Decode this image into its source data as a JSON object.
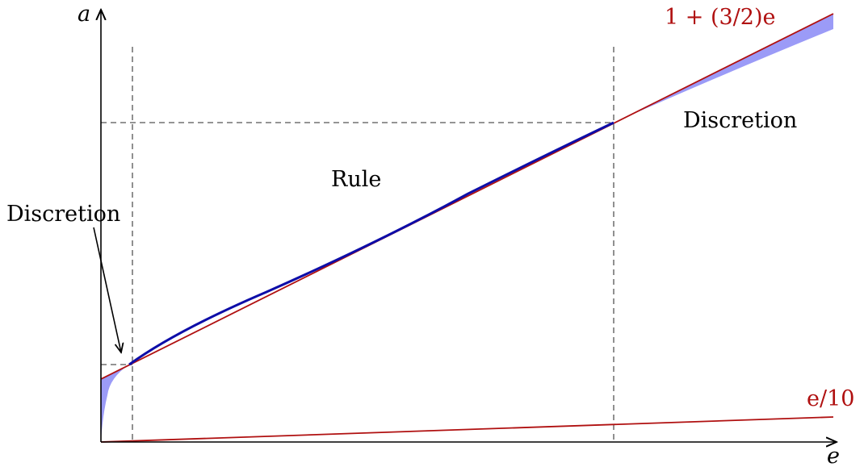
{
  "colors": {
    "line": "#b01010",
    "curve": "#0d0da8",
    "band": "#9b9bf7",
    "axis": "#000000",
    "guide": "#555555"
  },
  "axes": {
    "x_label": "e",
    "y_label": "a"
  },
  "labels": {
    "upper_line": "1 + (3/2)e",
    "lower_line": "e/10",
    "region_rule": "Rule",
    "region_discretion_right": "Discretion",
    "region_discretion_left": "Discretion"
  },
  "icons": {
    "arrowheads": "axis-arrow-icon",
    "pointer": "pointer-arrow-icon"
  }
}
